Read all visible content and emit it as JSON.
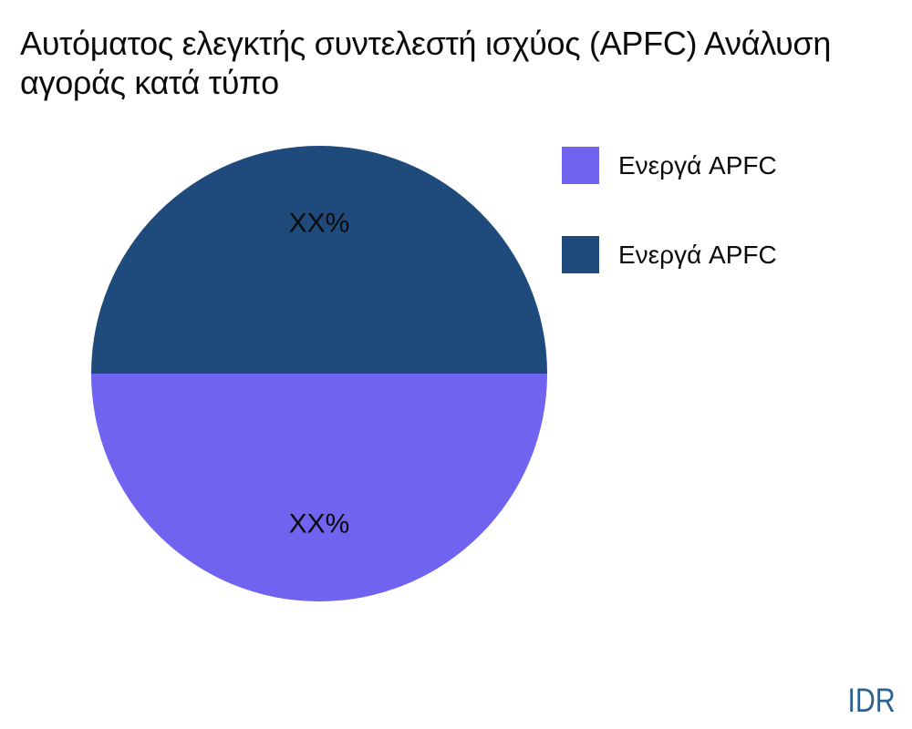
{
  "header": {
    "title": "Αυτόματος ελεγκτής συντελεστή ισχύος (APFC) Ανάλυση αγοράς κατά τύπο"
  },
  "watermark": {
    "text": "IDR",
    "color": "#2E6190"
  },
  "colors": {
    "background": "#ffffff",
    "text": "#0b0b0b"
  },
  "chart_data": {
    "type": "pie",
    "title": "Αυτόματος ελεγκτής συντελεστή ισχύος (APFC) Ανάλυση αγοράς κατά τύπο",
    "start_angle": 180,
    "direction": "counterclockwise",
    "legend_position": "right",
    "label_distance": 0.66,
    "label_font_size": 30,
    "slices": [
      {
        "label": "Ενεργά APFC",
        "value": 50,
        "display_label": "XX%",
        "color": "#6F63EF"
      },
      {
        "label": "Ενεργά APFC",
        "value": 50,
        "display_label": "XX%",
        "color": "#1F4A7C"
      }
    ]
  }
}
